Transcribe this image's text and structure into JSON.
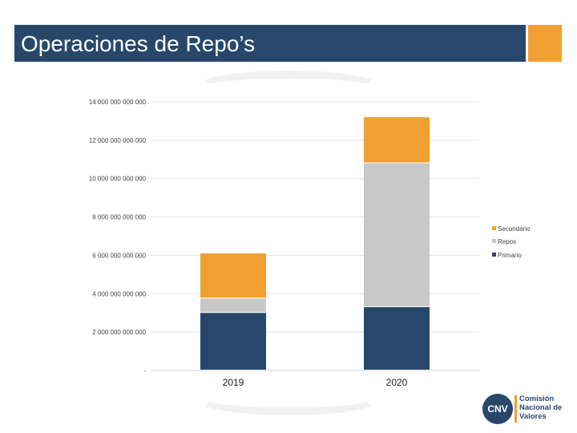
{
  "header": {
    "title": "Operaciones de Repo’s"
  },
  "colors": {
    "header_bg": "#27486b",
    "accent": "#f0a030",
    "primario": "#27486b",
    "repos": "#c8c8c8",
    "secundario": "#f0a030"
  },
  "logo": {
    "mark": "CNV",
    "line1": "Comisión",
    "line2": "Nacional de",
    "line3": "Valores"
  },
  "chart_data": {
    "type": "bar",
    "stacked": true,
    "categories": [
      "2019",
      "2020"
    ],
    "series": [
      {
        "name": "Primario",
        "color": "#27486b",
        "values": [
          3000000000000,
          3300000000000
        ]
      },
      {
        "name": "Repos",
        "color": "#c8c8c8",
        "values": [
          750000000000,
          7500000000000
        ]
      },
      {
        "name": "Secundario",
        "color": "#f0a030",
        "values": [
          2350000000000,
          2400000000000
        ]
      }
    ],
    "ylim": [
      0,
      14000000000000
    ],
    "yticks": [
      0,
      2000000000000,
      4000000000000,
      6000000000000,
      8000000000000,
      10000000000000,
      12000000000000,
      14000000000000
    ],
    "ytick_labels": [
      "-",
      "2 000 000 000 000",
      "4 000 000 000 000",
      "6 000 000 000 000",
      "8 000 000 000 000",
      "10 000 000 000 000",
      "12 000 000 000 000",
      "14 000 000 000 000"
    ],
    "legend_order": [
      "Secundario",
      "Repos",
      "Primario"
    ],
    "legend_position": "right",
    "grid": true
  }
}
